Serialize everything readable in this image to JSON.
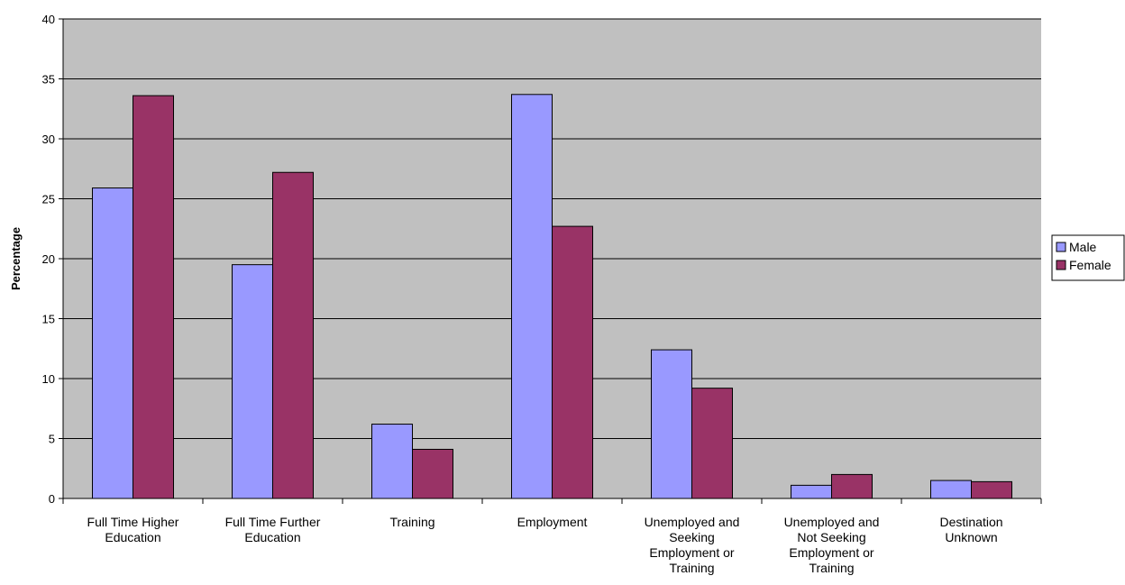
{
  "chart_data": {
    "type": "bar",
    "title": "",
    "xlabel": "",
    "ylabel": "Percentage",
    "ylim": [
      0,
      40
    ],
    "yticks": [
      0,
      5,
      10,
      15,
      20,
      25,
      30,
      35,
      40
    ],
    "grid": true,
    "legend_position": "right",
    "categories": [
      [
        "Full Time Higher",
        "Education"
      ],
      [
        "Full Time Further",
        "Education"
      ],
      [
        "Training"
      ],
      [
        "Employment"
      ],
      [
        "Unemployed and",
        "Seeking",
        "Employment or",
        "Training"
      ],
      [
        "Unemployed and",
        "Not Seeking",
        "Employment or",
        "Training"
      ],
      [
        "Destination",
        "Unknown"
      ]
    ],
    "series": [
      {
        "name": "Male",
        "color": "#9999ff",
        "values": [
          25.9,
          19.5,
          6.2,
          33.7,
          12.4,
          1.1,
          1.5
        ]
      },
      {
        "name": "Female",
        "color": "#993366",
        "values": [
          33.6,
          27.2,
          4.1,
          22.7,
          9.2,
          2.0,
          1.4
        ]
      }
    ],
    "plot_background": "#c0c0c0"
  }
}
